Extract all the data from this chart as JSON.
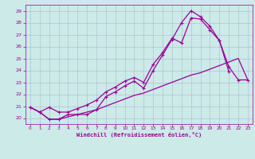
{
  "xlabel": "Windchill (Refroidissement éolien,°C)",
  "x_ticks": [
    0,
    1,
    2,
    3,
    4,
    5,
    6,
    7,
    8,
    9,
    10,
    11,
    12,
    13,
    14,
    15,
    16,
    17,
    18,
    19,
    20,
    21,
    22,
    23
  ],
  "ylim": [
    19.5,
    29.5
  ],
  "xlim": [
    -0.5,
    23.5
  ],
  "y_ticks": [
    20,
    21,
    22,
    23,
    24,
    25,
    26,
    27,
    28,
    29
  ],
  "background_color": "#cceae8",
  "grid_color": "#aab8cc",
  "line_color": "#990099",
  "line1_y": [
    20.9,
    20.5,
    19.9,
    19.9,
    20.3,
    20.3,
    20.3,
    20.7,
    21.8,
    22.2,
    22.7,
    23.1,
    22.5,
    24.0,
    25.3,
    26.6,
    28.0,
    29.0,
    28.5,
    27.7,
    26.5,
    24.3,
    23.2,
    23.2
  ],
  "line2_y": [
    20.9,
    20.5,
    20.9,
    20.5,
    20.5,
    20.8,
    21.1,
    21.5,
    22.2,
    22.6,
    23.1,
    23.4,
    23.0,
    24.5,
    25.5,
    26.7,
    26.3,
    28.4,
    28.3,
    27.4,
    26.5,
    23.9,
    null,
    null
  ],
  "line3_y": [
    20.9,
    20.5,
    19.9,
    19.9,
    20.1,
    20.3,
    20.5,
    20.7,
    21.0,
    21.3,
    21.6,
    21.9,
    22.1,
    22.4,
    22.7,
    23.0,
    23.3,
    23.6,
    23.8,
    24.1,
    24.4,
    24.7,
    25.0,
    23.2
  ]
}
